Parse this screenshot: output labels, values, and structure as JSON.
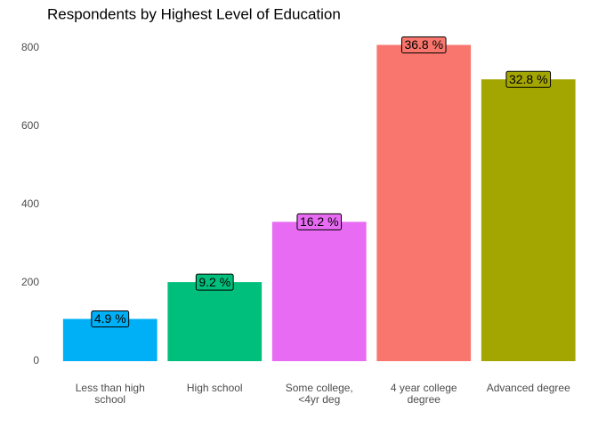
{
  "chart_data": {
    "type": "bar",
    "title": "Respondents by Highest Level of Education",
    "categories": [
      "Less than high\nschool",
      "High school",
      "Some college,\n<4yr deg",
      "4 year college\ndegree",
      "Advanced degree"
    ],
    "values": [
      108,
      202,
      356,
      808,
      720
    ],
    "bar_labels": [
      "4.9 %",
      "9.2 %",
      "16.2 %",
      "36.8 %",
      "32.8 %"
    ],
    "colors": [
      "#00B0F6",
      "#00BF7D",
      "#E76BF3",
      "#F8766D",
      "#A3A500"
    ],
    "ylim": [
      0,
      820
    ],
    "yticks": [
      0,
      200,
      400,
      600,
      800
    ],
    "grid": false
  }
}
